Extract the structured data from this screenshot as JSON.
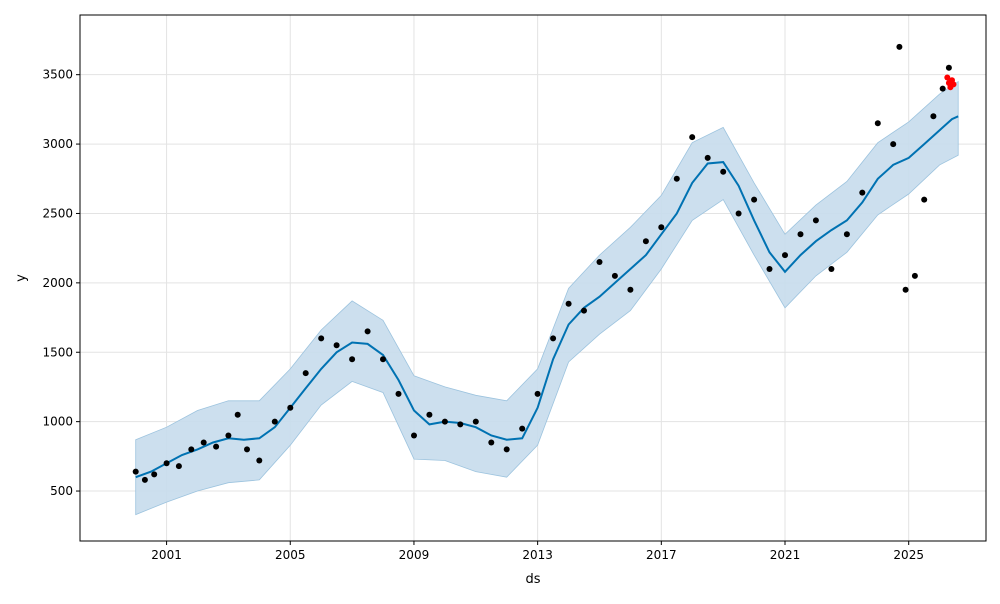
{
  "chart_data": {
    "type": "line",
    "title": "",
    "xlabel": "ds",
    "ylabel": "y",
    "x_ticks": [
      "2001",
      "2005",
      "2009",
      "2013",
      "2017",
      "2021",
      "2025"
    ],
    "y_ticks": [
      500,
      1000,
      1500,
      2000,
      2500,
      3000,
      3500
    ],
    "xlim": [
      1998.2,
      2027.5
    ],
    "ylim": [
      140,
      3930
    ],
    "grid": true,
    "legend": "none",
    "colors": {
      "forecast_line": "#0072B2",
      "uncertainty_band": "#c6dcec",
      "observations": "#000000",
      "future_points": "#ff0000",
      "grid": "#e3e3e3"
    },
    "series": [
      {
        "kind": "forecast_line",
        "points": [
          [
            2000.0,
            600
          ],
          [
            2000.5,
            640
          ],
          [
            2001.0,
            700
          ],
          [
            2001.5,
            760
          ],
          [
            2002.0,
            800
          ],
          [
            2002.5,
            850
          ],
          [
            2003.0,
            880
          ],
          [
            2003.5,
            870
          ],
          [
            2004.0,
            880
          ],
          [
            2004.5,
            960
          ],
          [
            2005.0,
            1100
          ],
          [
            2005.5,
            1240
          ],
          [
            2006.0,
            1380
          ],
          [
            2006.5,
            1500
          ],
          [
            2007.0,
            1570
          ],
          [
            2007.5,
            1560
          ],
          [
            2008.0,
            1480
          ],
          [
            2008.5,
            1300
          ],
          [
            2009.0,
            1080
          ],
          [
            2009.5,
            980
          ],
          [
            2010.0,
            1000
          ],
          [
            2010.5,
            990
          ],
          [
            2011.0,
            960
          ],
          [
            2011.5,
            900
          ],
          [
            2012.0,
            870
          ],
          [
            2012.5,
            880
          ],
          [
            2013.0,
            1100
          ],
          [
            2013.5,
            1450
          ],
          [
            2014.0,
            1700
          ],
          [
            2014.5,
            1820
          ],
          [
            2015.0,
            1900
          ],
          [
            2015.5,
            2000
          ],
          [
            2016.0,
            2100
          ],
          [
            2016.5,
            2200
          ],
          [
            2017.0,
            2350
          ],
          [
            2017.5,
            2500
          ],
          [
            2018.0,
            2720
          ],
          [
            2018.5,
            2860
          ],
          [
            2019.0,
            2870
          ],
          [
            2019.5,
            2700
          ],
          [
            2020.0,
            2450
          ],
          [
            2020.5,
            2220
          ],
          [
            2021.0,
            2080
          ],
          [
            2021.5,
            2200
          ],
          [
            2022.0,
            2300
          ],
          [
            2022.5,
            2380
          ],
          [
            2023.0,
            2450
          ],
          [
            2023.5,
            2580
          ],
          [
            2024.0,
            2750
          ],
          [
            2024.5,
            2850
          ],
          [
            2025.0,
            2900
          ],
          [
            2025.5,
            3000
          ],
          [
            2026.0,
            3100
          ],
          [
            2026.4,
            3180
          ],
          [
            2026.6,
            3200
          ]
        ]
      },
      {
        "kind": "observations",
        "points": [
          [
            2000.0,
            640
          ],
          [
            2000.3,
            580
          ],
          [
            2000.6,
            620
          ],
          [
            2001.0,
            700
          ],
          [
            2001.4,
            680
          ],
          [
            2001.8,
            800
          ],
          [
            2002.2,
            850
          ],
          [
            2002.6,
            820
          ],
          [
            2003.0,
            900
          ],
          [
            2003.3,
            1050
          ],
          [
            2003.6,
            800
          ],
          [
            2004.0,
            720
          ],
          [
            2004.5,
            1000
          ],
          [
            2005.0,
            1100
          ],
          [
            2005.5,
            1350
          ],
          [
            2006.0,
            1600
          ],
          [
            2006.5,
            1550
          ],
          [
            2007.0,
            1450
          ],
          [
            2007.5,
            1650
          ],
          [
            2008.0,
            1450
          ],
          [
            2008.5,
            1200
          ],
          [
            2009.0,
            900
          ],
          [
            2009.5,
            1050
          ],
          [
            2010.0,
            1000
          ],
          [
            2010.5,
            980
          ],
          [
            2011.0,
            1000
          ],
          [
            2011.5,
            850
          ],
          [
            2012.0,
            800
          ],
          [
            2012.5,
            950
          ],
          [
            2013.0,
            1200
          ],
          [
            2013.5,
            1600
          ],
          [
            2014.0,
            1850
          ],
          [
            2014.5,
            1800
          ],
          [
            2015.0,
            2150
          ],
          [
            2015.5,
            2050
          ],
          [
            2016.0,
            1950
          ],
          [
            2016.5,
            2300
          ],
          [
            2017.0,
            2400
          ],
          [
            2017.5,
            2750
          ],
          [
            2018.0,
            3050
          ],
          [
            2018.5,
            2900
          ],
          [
            2019.0,
            2800
          ],
          [
            2019.5,
            2500
          ],
          [
            2020.0,
            2600
          ],
          [
            2020.5,
            2100
          ],
          [
            2021.0,
            2200
          ],
          [
            2021.5,
            2350
          ],
          [
            2022.0,
            2450
          ],
          [
            2022.5,
            2100
          ],
          [
            2023.0,
            2350
          ],
          [
            2023.5,
            2650
          ],
          [
            2024.0,
            3150
          ],
          [
            2024.5,
            3000
          ],
          [
            2024.7,
            3700
          ],
          [
            2024.9,
            1950
          ],
          [
            2025.2,
            2050
          ],
          [
            2025.5,
            2600
          ],
          [
            2025.8,
            3200
          ],
          [
            2026.1,
            3400
          ],
          [
            2026.3,
            3550
          ]
        ]
      },
      {
        "kind": "future_points",
        "points": [
          [
            2026.25,
            3480
          ],
          [
            2026.3,
            3440
          ],
          [
            2026.35,
            3410
          ],
          [
            2026.4,
            3460
          ],
          [
            2026.45,
            3430
          ]
        ]
      }
    ],
    "uncertainty_band": {
      "x": [
        2000.0,
        2001.0,
        2002.0,
        2003.0,
        2004.0,
        2005.0,
        2006.0,
        2007.0,
        2008.0,
        2009.0,
        2010.0,
        2011.0,
        2012.0,
        2013.0,
        2014.0,
        2015.0,
        2016.0,
        2017.0,
        2018.0,
        2019.0,
        2020.0,
        2021.0,
        2022.0,
        2023.0,
        2024.0,
        2025.0,
        2026.0,
        2026.6
      ],
      "upper": [
        870,
        960,
        1080,
        1150,
        1150,
        1380,
        1660,
        1870,
        1730,
        1330,
        1250,
        1190,
        1150,
        1380,
        1960,
        2200,
        2400,
        2630,
        3010,
        3120,
        2720,
        2350,
        2560,
        2730,
        3010,
        3160,
        3360,
        3450
      ],
      "lower": [
        330,
        420,
        500,
        560,
        580,
        830,
        1120,
        1290,
        1210,
        730,
        720,
        640,
        600,
        830,
        1430,
        1630,
        1800,
        2100,
        2450,
        2600,
        2200,
        1820,
        2050,
        2220,
        2490,
        2640,
        2850,
        2920
      ]
    }
  }
}
